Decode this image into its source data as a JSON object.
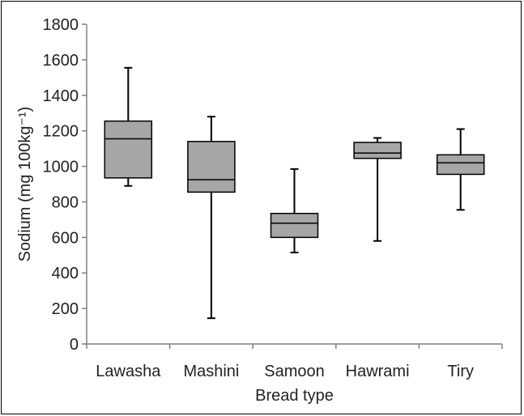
{
  "chart_data": {
    "type": "box",
    "title": "",
    "xlabel": "Bread type",
    "ylabel": "Sodium (mg 100kg⁻¹)",
    "ylim": [
      0,
      1800
    ],
    "yticks": [
      0,
      200,
      400,
      600,
      800,
      1000,
      1200,
      1400,
      1600,
      1800
    ],
    "grid": false,
    "categories": [
      "Lawasha",
      "Mashini",
      "Samoon",
      "Hawrami",
      "Tiry"
    ],
    "series": [
      {
        "category": "Lawasha",
        "min": 890,
        "q1": 935,
        "median": 1155,
        "q3": 1255,
        "max": 1555
      },
      {
        "category": "Mashini",
        "min": 145,
        "q1": 855,
        "median": 925,
        "q3": 1140,
        "max": 1280
      },
      {
        "category": "Samoon",
        "min": 515,
        "q1": 600,
        "median": 680,
        "q3": 735,
        "max": 985
      },
      {
        "category": "Hawrami",
        "min": 580,
        "q1": 1045,
        "median": 1075,
        "q3": 1135,
        "max": 1160
      },
      {
        "category": "Tiry",
        "min": 755,
        "q1": 955,
        "median": 1020,
        "q3": 1065,
        "max": 1210
      }
    ],
    "box_color": "#a6a6a6"
  }
}
